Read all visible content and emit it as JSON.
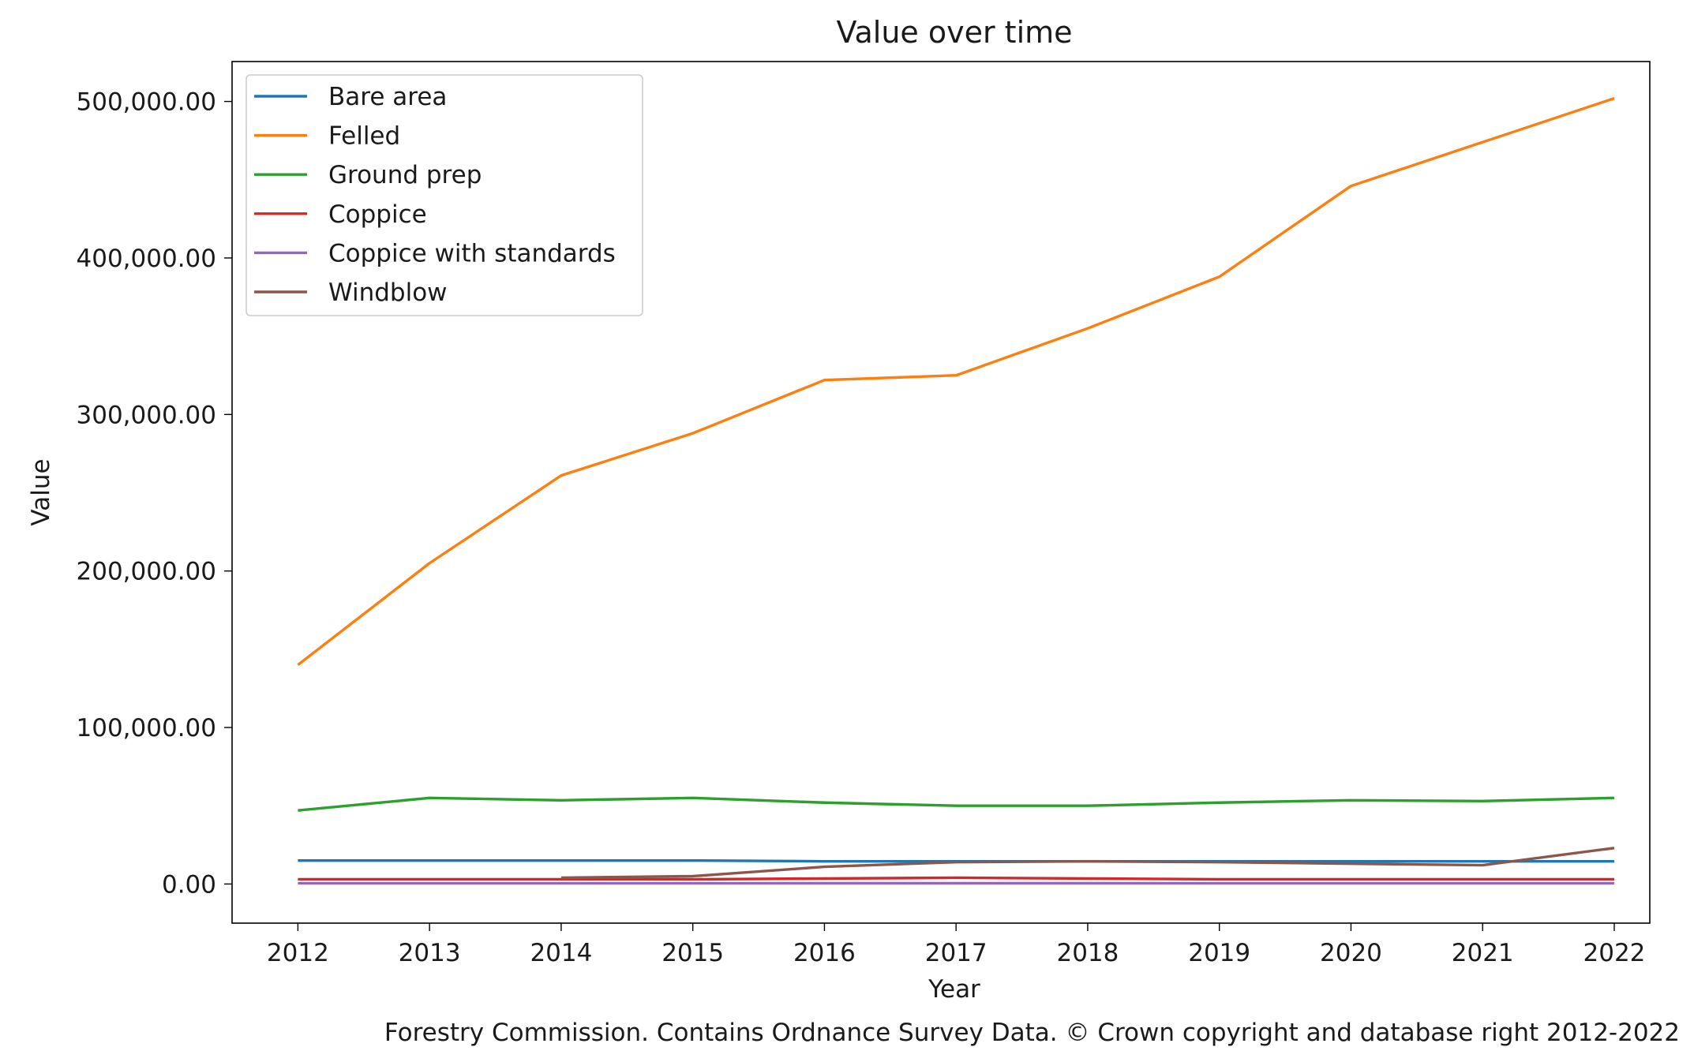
{
  "chart_data": {
    "type": "line",
    "title": "Value over time",
    "xlabel": "Year",
    "ylabel": "Value",
    "caption": "Forestry Commission. Contains Ordnance Survey Data. © Crown copyright and database right 2012-2022",
    "x": [
      2012,
      2013,
      2014,
      2015,
      2016,
      2017,
      2018,
      2019,
      2020,
      2021,
      2022
    ],
    "x_ticks": [
      "2012",
      "2013",
      "2014",
      "2015",
      "2016",
      "2017",
      "2018",
      "2019",
      "2020",
      "2021",
      "2022"
    ],
    "xlim": [
      2011.5,
      2022.27
    ],
    "ylim": [
      -25000,
      525500
    ],
    "y_ticks": [
      0,
      100000,
      200000,
      300000,
      400000,
      500000
    ],
    "y_tick_labels": [
      "0.00",
      "100,000.00",
      "200,000.00",
      "300,000.00",
      "400,000.00",
      "500,000.00"
    ],
    "grid": false,
    "legend_position": "top-left",
    "series": [
      {
        "name": "Bare area",
        "color": "#1f77b4",
        "values": [
          15000,
          15000,
          15000,
          15000,
          14500,
          14500,
          14500,
          14500,
          14500,
          14500,
          14500
        ]
      },
      {
        "name": "Felled",
        "color": "#ff7f0e",
        "values": [
          140000,
          205000,
          261000,
          288000,
          322000,
          325000,
          355000,
          388000,
          446000,
          474000,
          502000
        ]
      },
      {
        "name": "Ground prep",
        "color": "#2ca02c",
        "values": [
          47000,
          55000,
          53500,
          55000,
          52000,
          50000,
          50000,
          52000,
          53500,
          53000,
          55000
        ]
      },
      {
        "name": "Coppice",
        "color": "#d62728",
        "values": [
          3000,
          3000,
          3000,
          3000,
          3500,
          4000,
          3500,
          3000,
          3000,
          3000,
          3000
        ]
      },
      {
        "name": "Coppice with standards",
        "color": "#9467bd",
        "values": [
          500,
          500,
          500,
          500,
          500,
          500,
          500,
          500,
          500,
          500,
          500
        ]
      },
      {
        "name": "Windblow",
        "color": "#8c564b",
        "values": [
          null,
          null,
          4000,
          5000,
          11000,
          14000,
          14500,
          14000,
          13000,
          12000,
          23000
        ]
      }
    ]
  }
}
